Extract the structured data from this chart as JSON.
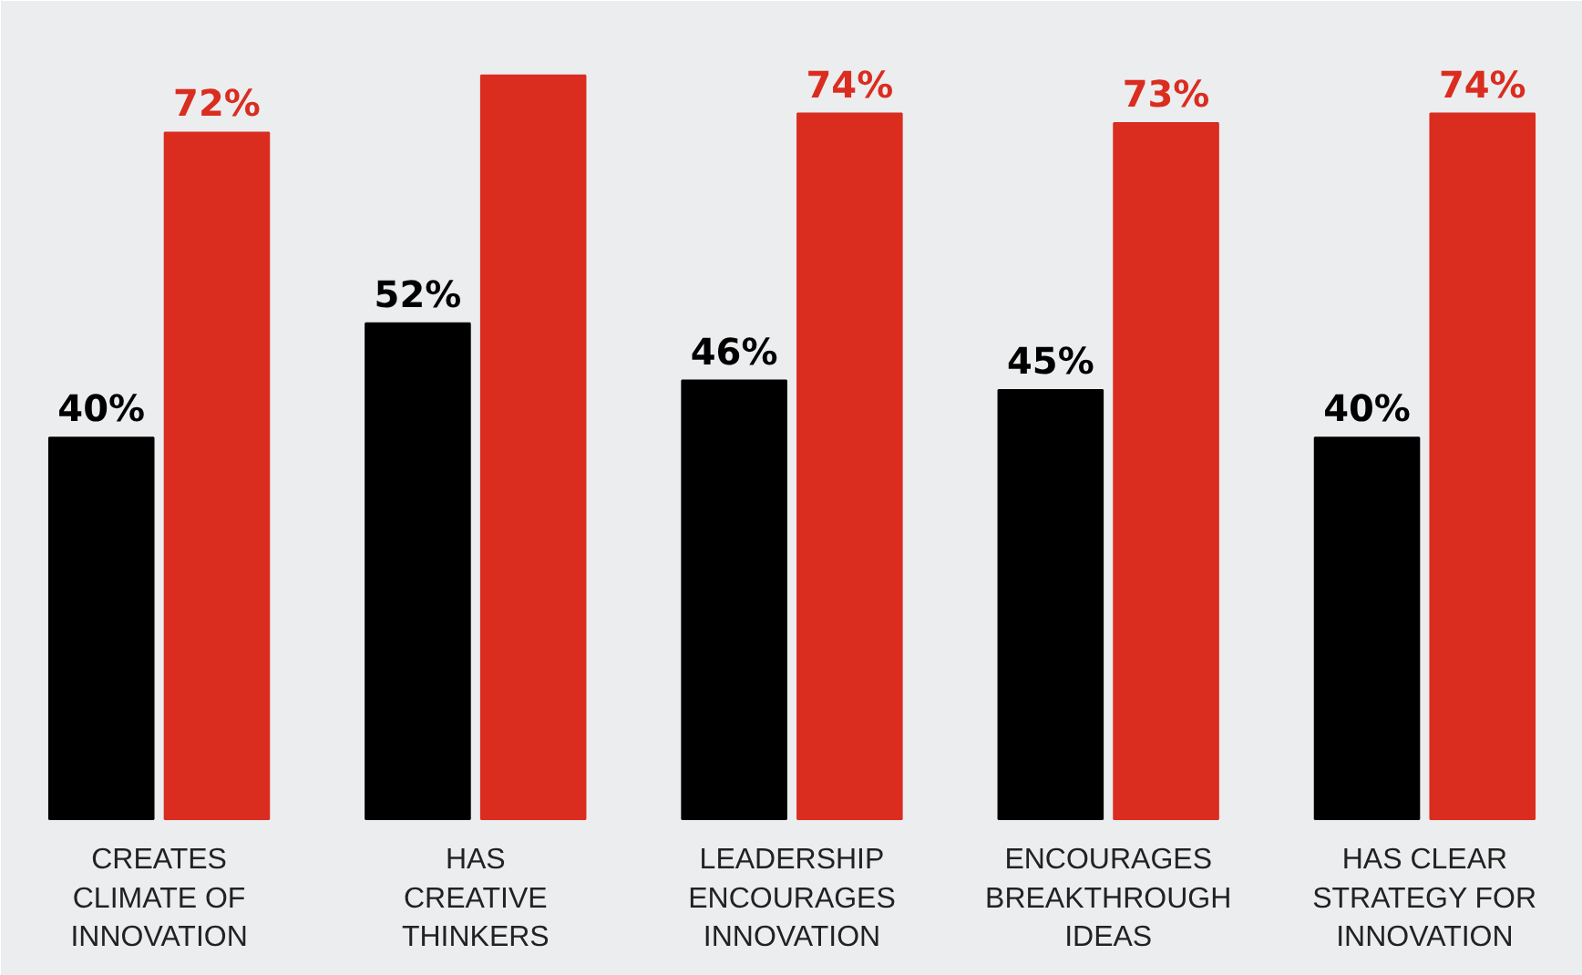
{
  "chart_data": {
    "type": "bar",
    "categories": [
      "CREATES\nCLIMATE OF\nINNOVATION",
      "HAS\nCREATIVE\nTHINKERS",
      "LEADERSHIP\nENCOURAGES\nINNOVATION",
      "ENCOURAGES\nBREAKTHROUGH\nIDEAS",
      "HAS CLEAR\nSTRATEGY FOR\nINNOVATION"
    ],
    "series": [
      {
        "color": "#000000",
        "values": [
          40,
          52,
          46,
          45,
          40
        ],
        "value_labels": [
          "40%",
          "52%",
          "46%",
          "45%",
          "40%"
        ]
      },
      {
        "color": "#da2d20",
        "values": [
          72,
          78,
          74,
          73,
          74
        ],
        "value_labels": [
          "72%",
          null,
          "74%",
          "73%",
          "74%"
        ]
      }
    ],
    "grid": false
  }
}
